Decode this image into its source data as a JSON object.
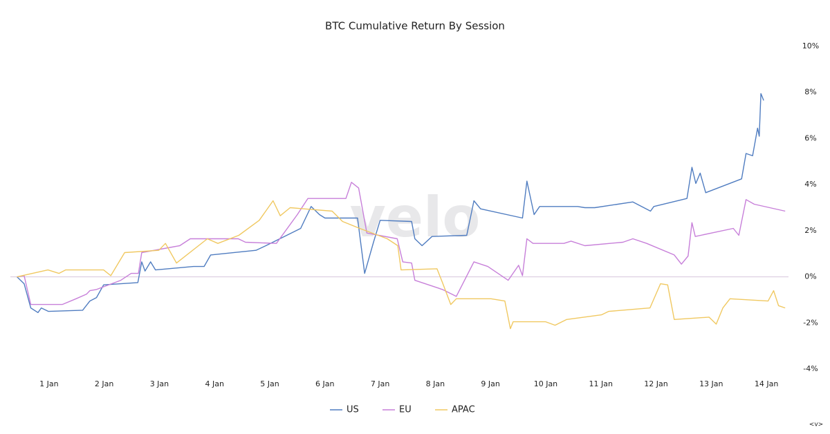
{
  "chart_data": {
    "type": "line",
    "title": "BTC Cumulative Return By Session",
    "watermark": "velo",
    "footer_mark": "<v>",
    "xlim": [
      0.3,
      14.4
    ],
    "xticks": [
      {
        "value": 1,
        "label": "1 Jan"
      },
      {
        "value": 2,
        "label": "2 Jan"
      },
      {
        "value": 3,
        "label": "3 Jan"
      },
      {
        "value": 4,
        "label": "4 Jan"
      },
      {
        "value": 5,
        "label": "5 Jan"
      },
      {
        "value": 6,
        "label": "6 Jan"
      },
      {
        "value": 7,
        "label": "7 Jan"
      },
      {
        "value": 8,
        "label": "8 Jan"
      },
      {
        "value": 9,
        "label": "9 Jan"
      },
      {
        "value": 10,
        "label": "10 Jan"
      },
      {
        "value": 11,
        "label": "11 Jan"
      },
      {
        "value": 12,
        "label": "12 Jan"
      },
      {
        "value": 13,
        "label": "13 Jan"
      },
      {
        "value": 14,
        "label": "14 Jan"
      }
    ],
    "ylim": [
      -4,
      10
    ],
    "yticks": [
      {
        "value": -4,
        "label": "-4%"
      },
      {
        "value": -2,
        "label": "-2%"
      },
      {
        "value": 0,
        "label": "0%"
      },
      {
        "value": 2,
        "label": "2%"
      },
      {
        "value": 4,
        "label": "4%"
      },
      {
        "value": 6,
        "label": "6%"
      },
      {
        "value": 8,
        "label": "8%"
      },
      {
        "value": 10,
        "label": "10%"
      }
    ],
    "zero_line": true,
    "zero_line_color": "#d6c4dc",
    "series": [
      {
        "name": "US",
        "color": "#4f7cc0",
        "x": [
          0.42,
          0.55,
          0.67,
          0.8,
          0.86,
          0.99,
          1.61,
          1.74,
          1.86,
          1.99,
          2.61,
          2.68,
          2.74,
          2.84,
          2.93,
          3.62,
          3.81,
          3.93,
          4.75,
          4.93,
          5.56,
          5.75,
          5.9,
          6.0,
          6.59,
          6.72,
          6.88,
          7.0,
          7.57,
          7.63,
          7.76,
          7.94,
          8.57,
          8.7,
          8.82,
          9.58,
          9.66,
          9.79,
          9.89,
          10.58,
          10.71,
          10.89,
          11.58,
          11.9,
          11.96,
          12.56,
          12.65,
          12.72,
          12.8,
          12.9,
          13.55,
          13.63,
          13.75,
          13.84,
          13.87,
          13.9,
          13.95
        ],
        "values": [
          0,
          -0.3,
          -1.35,
          -1.55,
          -1.35,
          -1.5,
          -1.45,
          -1.05,
          -0.9,
          -0.35,
          -0.25,
          0.65,
          0.25,
          0.65,
          0.3,
          0.45,
          0.45,
          0.95,
          1.15,
          1.35,
          2.1,
          3.05,
          2.7,
          2.55,
          2.55,
          0.15,
          1.5,
          2.45,
          2.4,
          1.65,
          1.35,
          1.75,
          1.8,
          3.3,
          2.95,
          2.55,
          4.15,
          2.7,
          3.05,
          3.05,
          3.0,
          3.0,
          3.25,
          2.85,
          3.05,
          3.4,
          4.75,
          4.05,
          4.5,
          3.65,
          4.25,
          5.35,
          5.25,
          6.45,
          6.1,
          7.95,
          7.65
        ]
      },
      {
        "name": "EU",
        "color": "#c77fd9",
        "x": [
          0.42,
          0.55,
          0.67,
          1.24,
          1.49,
          1.68,
          1.74,
          1.86,
          2.3,
          2.49,
          2.62,
          2.68,
          3.37,
          3.56,
          3.93,
          4.43,
          4.56,
          5.12,
          5.5,
          5.69,
          6.38,
          6.48,
          6.61,
          6.76,
          7.31,
          7.41,
          7.57,
          7.63,
          8.13,
          8.38,
          8.7,
          8.95,
          9.32,
          9.51,
          9.58,
          9.66,
          9.77,
          10.33,
          10.46,
          10.71,
          11.4,
          11.58,
          11.83,
          12.33,
          12.46,
          12.58,
          12.65,
          12.71,
          13.4,
          13.5,
          13.63,
          13.78,
          14.34
        ],
        "values": [
          0,
          0.05,
          -1.2,
          -1.2,
          -0.95,
          -0.75,
          -0.6,
          -0.55,
          -0.15,
          0.15,
          0.15,
          1.05,
          1.35,
          1.65,
          1.65,
          1.65,
          1.5,
          1.45,
          2.7,
          3.4,
          3.4,
          4.1,
          3.85,
          1.9,
          1.65,
          0.65,
          0.6,
          -0.15,
          -0.55,
          -0.85,
          0.65,
          0.45,
          -0.15,
          0.5,
          0.05,
          1.65,
          1.45,
          1.45,
          1.55,
          1.35,
          1.5,
          1.65,
          1.45,
          0.95,
          0.55,
          0.9,
          2.35,
          1.75,
          2.1,
          1.8,
          3.35,
          3.15,
          2.85
        ]
      },
      {
        "name": "APAC",
        "color": "#f0c860",
        "x": [
          0.42,
          0.98,
          1.18,
          1.3,
          1.99,
          2.12,
          2.37,
          2.99,
          3.11,
          3.31,
          3.87,
          4.06,
          4.44,
          4.81,
          5.06,
          5.19,
          5.37,
          5.62,
          6.13,
          6.32,
          6.63,
          7.13,
          7.32,
          7.38,
          8.03,
          8.13,
          8.28,
          8.38,
          9.01,
          9.26,
          9.36,
          9.41,
          10.0,
          10.17,
          10.38,
          11.01,
          11.14,
          11.89,
          12.08,
          12.21,
          12.33,
          12.96,
          13.09,
          13.21,
          13.34,
          14.03,
          14.13,
          14.22,
          14.34
        ],
        "values": [
          0,
          0.3,
          0.15,
          0.3,
          0.3,
          0.05,
          1.05,
          1.15,
          1.45,
          0.6,
          1.65,
          1.45,
          1.8,
          2.45,
          3.3,
          2.65,
          3.0,
          2.95,
          2.85,
          2.4,
          2.1,
          1.65,
          1.35,
          0.3,
          0.35,
          -0.25,
          -1.2,
          -0.95,
          -0.95,
          -1.05,
          -2.25,
          -1.95,
          -1.95,
          -2.1,
          -1.85,
          -1.65,
          -1.5,
          -1.35,
          -0.3,
          -0.35,
          -1.85,
          -1.75,
          -2.05,
          -1.35,
          -0.95,
          -1.05,
          -0.6,
          -1.25,
          -1.35
        ]
      }
    ]
  }
}
